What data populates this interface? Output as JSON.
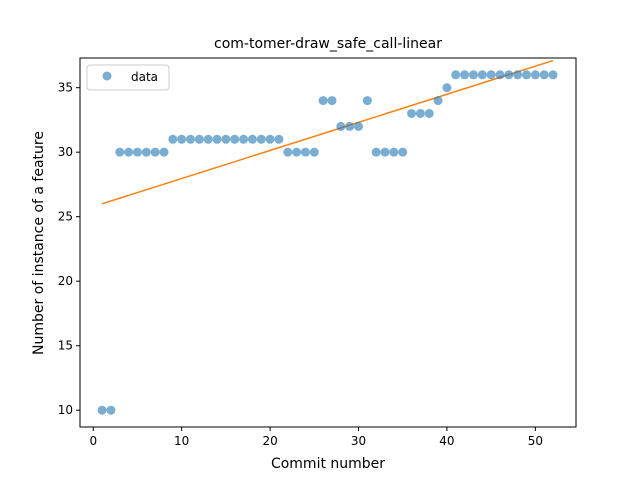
{
  "chart_data": {
    "type": "scatter",
    "title": "com-tomer-draw_safe_call-linear",
    "xlabel": "Commit number",
    "ylabel": "Number of instance of a feature",
    "xlim": [
      -1.5,
      54.6
    ],
    "ylim": [
      8.7,
      37.3
    ],
    "xticks": [
      0,
      10,
      20,
      30,
      40,
      50
    ],
    "yticks": [
      10,
      15,
      20,
      25,
      30,
      35
    ],
    "grid": false,
    "legend_position": "upper-left",
    "series": [
      {
        "name": "data",
        "kind": "scatter",
        "color": "#1f77b4",
        "x": [
          1,
          2,
          3,
          4,
          5,
          6,
          7,
          8,
          9,
          10,
          11,
          12,
          13,
          14,
          15,
          16,
          17,
          18,
          19,
          20,
          21,
          22,
          23,
          24,
          25,
          26,
          27,
          28,
          29,
          30,
          31,
          32,
          33,
          34,
          35,
          36,
          37,
          38,
          39,
          40,
          41,
          42,
          43,
          44,
          45,
          46,
          47,
          48,
          49,
          50,
          51,
          52
        ],
        "y": [
          10,
          10,
          30,
          30,
          30,
          30,
          30,
          30,
          31,
          31,
          31,
          31,
          31,
          31,
          31,
          31,
          31,
          31,
          31,
          31,
          31,
          30,
          30,
          30,
          30,
          34,
          34,
          32,
          32,
          32,
          34,
          30,
          30,
          30,
          30,
          33,
          33,
          33,
          34,
          35,
          36,
          36,
          36,
          36,
          36,
          36,
          36,
          36,
          36,
          36,
          36,
          36
        ]
      },
      {
        "kind": "line",
        "color": "#ff7f0e",
        "x": [
          1,
          52
        ],
        "y": [
          26.0,
          37.1
        ]
      }
    ]
  }
}
